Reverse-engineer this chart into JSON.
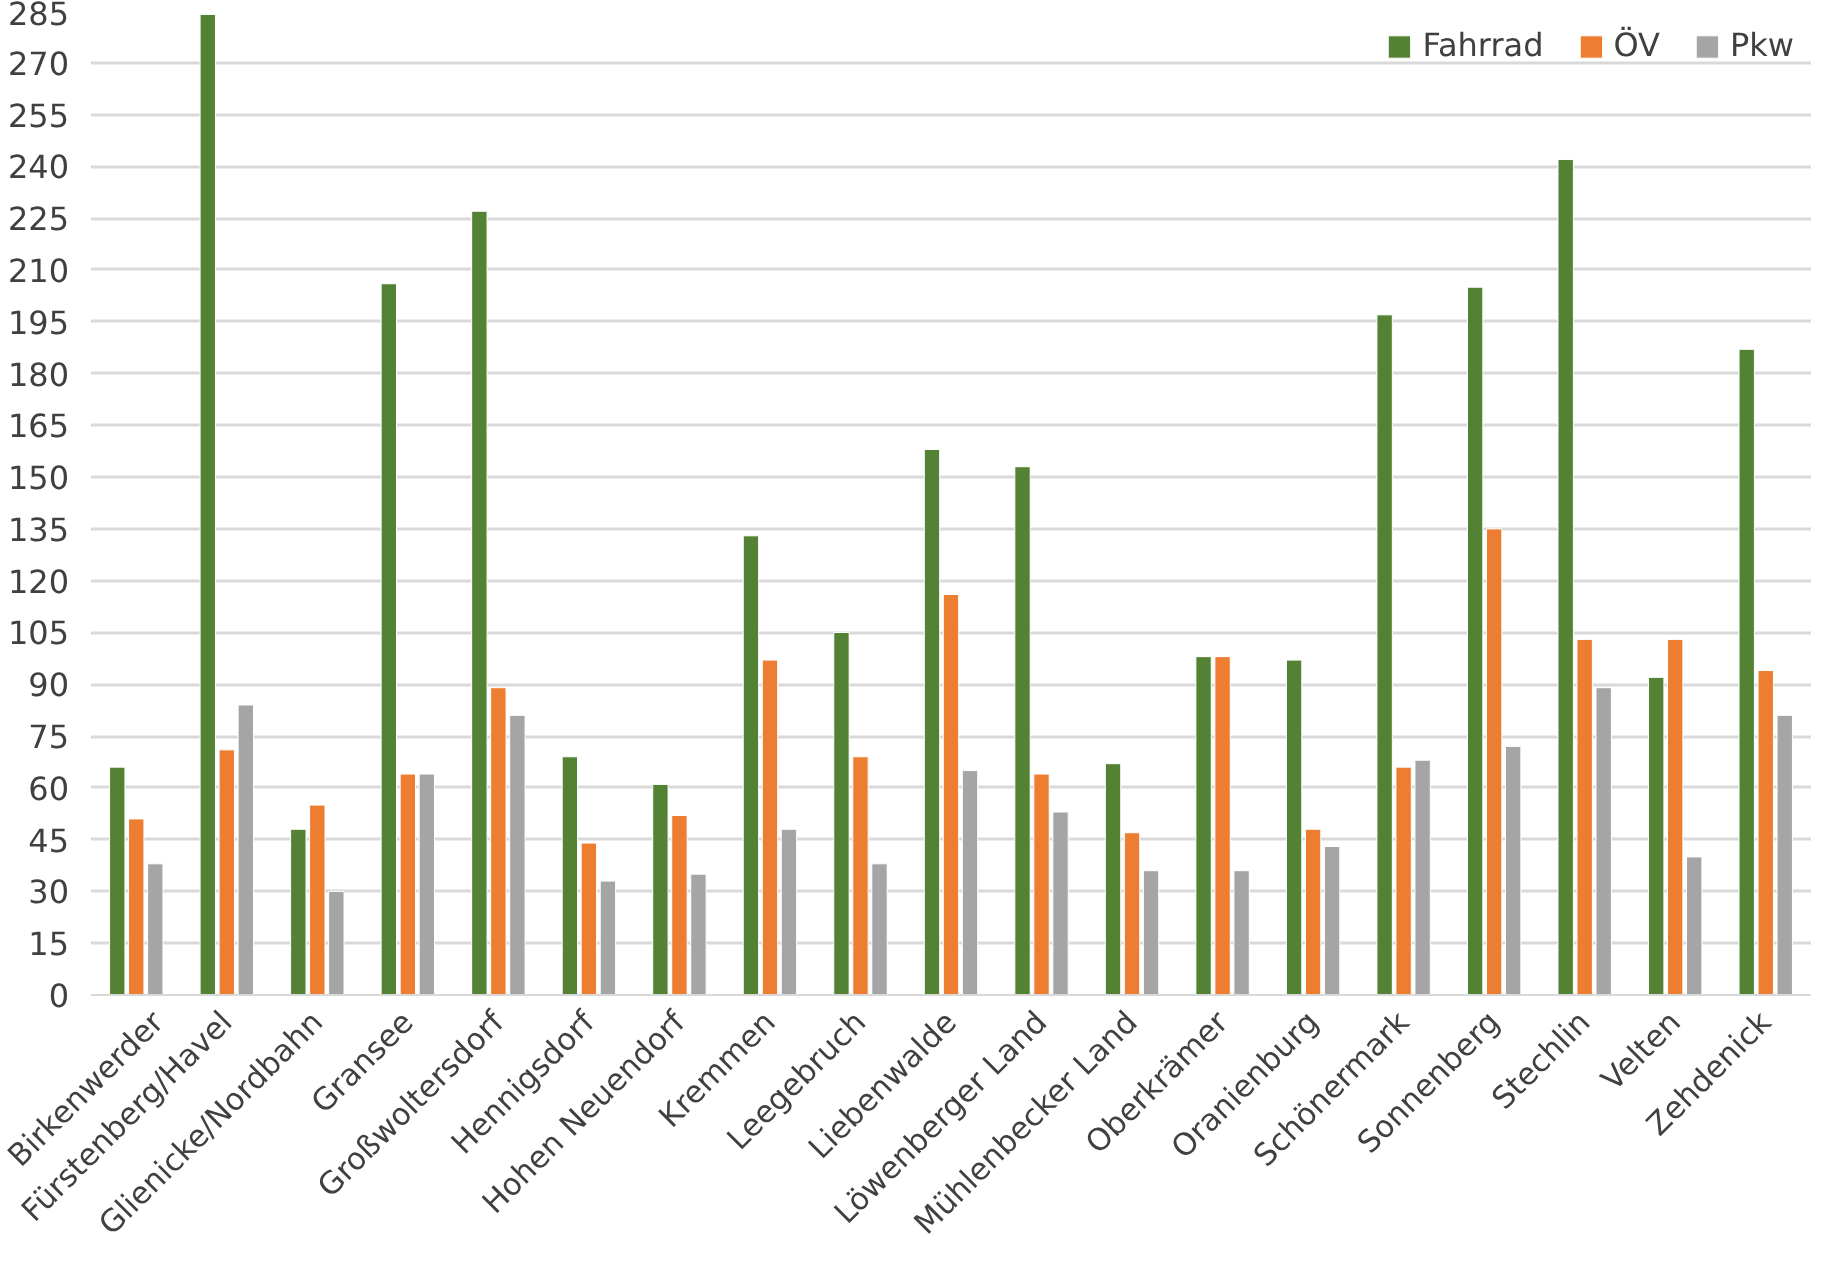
{
  "chart_data": {
    "type": "bar",
    "categories": [
      "Birkenwerder",
      "Fürstenberg/Havel",
      "Glienicke/Nordbahn",
      "Gransee",
      "Großwoltersdorf",
      "Hennigsdorf",
      "Hohen Neuendorf",
      "Kremmen",
      "Leegebruch",
      "Liebenwalde",
      "Löwenberger Land",
      "Mühlenbecker Land",
      "Oberkrämer",
      "Oranienburg",
      "Schönermark",
      "Sonnenberg",
      "Stechlin",
      "Velten",
      "Zehdenick"
    ],
    "series": [
      {
        "name": "Fahrrad",
        "color": "#548235",
        "values": [
          66,
          284,
          48,
          206,
          227,
          69,
          61,
          133,
          105,
          158,
          153,
          67,
          98,
          97,
          197,
          205,
          242,
          92,
          187
        ]
      },
      {
        "name": "ÖV",
        "color": "#ed7d31",
        "values": [
          51,
          71,
          55,
          64,
          89,
          44,
          52,
          97,
          69,
          116,
          64,
          47,
          98,
          48,
          66,
          135,
          103,
          103,
          94
        ]
      },
      {
        "name": "Pkw",
        "color": "#a5a5a5",
        "values": [
          38,
          84,
          30,
          64,
          81,
          33,
          35,
          48,
          38,
          65,
          53,
          36,
          36,
          43,
          68,
          72,
          89,
          40,
          81
        ]
      }
    ],
    "ylim": [
      0,
      285
    ],
    "yticks": [
      0,
      15,
      30,
      45,
      60,
      75,
      90,
      105,
      120,
      135,
      150,
      165,
      180,
      195,
      210,
      225,
      240,
      255,
      270,
      285
    ],
    "grid": "y",
    "legend": "top right"
  }
}
